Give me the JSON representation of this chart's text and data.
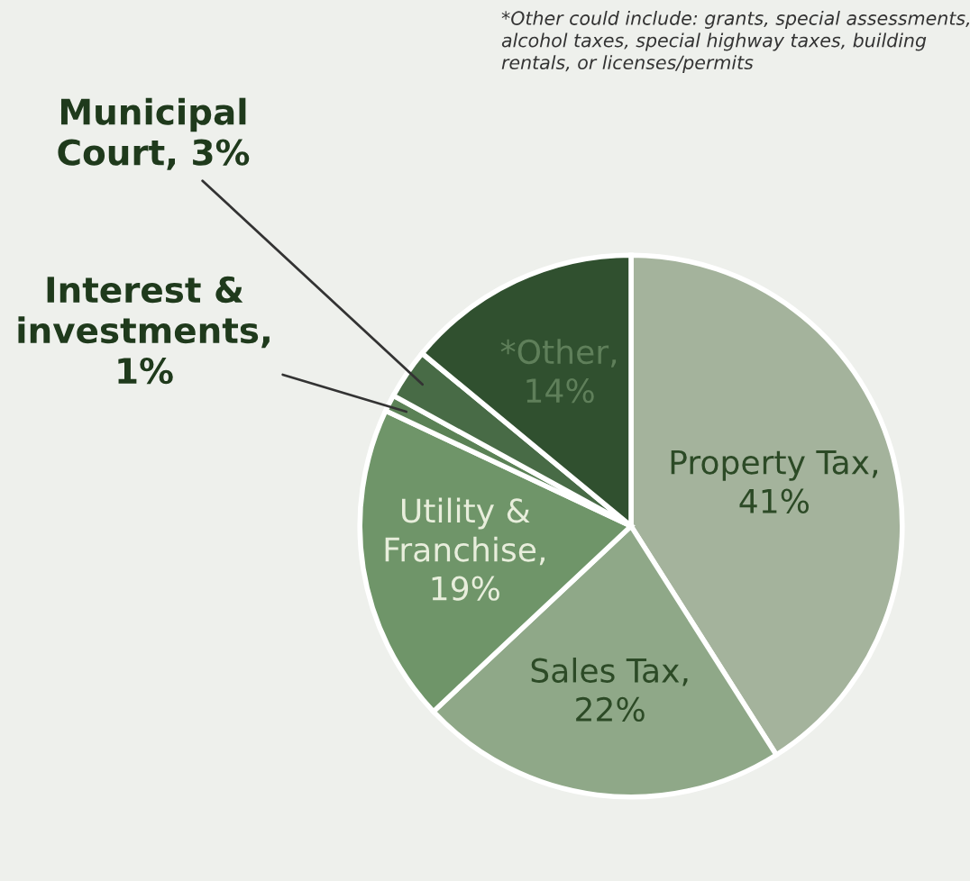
{
  "chart_data": {
    "type": "pie",
    "categories": [
      "Property Tax,\n41%",
      "Sales Tax,\n22%",
      "Utility &\nFranchise,\n19%",
      "Interest &\ninvestments,\n1%",
      "Municipal\nCourt, 3%",
      "*Other,\n14%"
    ],
    "values": [
      41,
      22,
      19,
      1,
      3,
      14
    ],
    "colors": [
      "#a4b39c",
      "#8fa888",
      "#6f9569",
      "#5b8256",
      "#486b46",
      "#30502f"
    ],
    "annotations": [
      "*Other could include: grants, special assessments,\nalcohol taxes, special highway taxes, building\nrentals, or licenses/permits"
    ]
  }
}
